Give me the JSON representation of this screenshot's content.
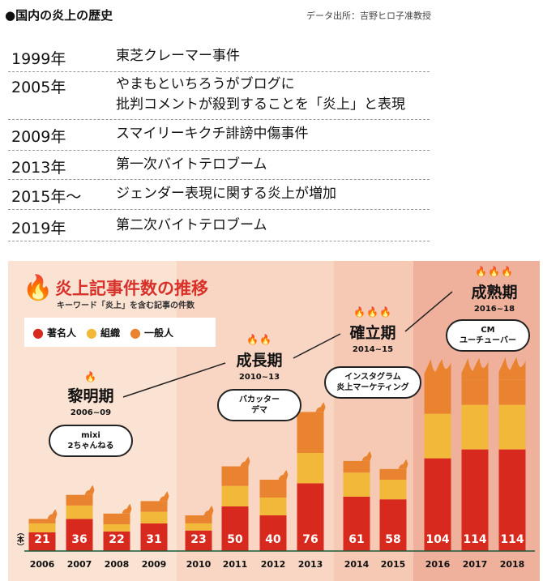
{
  "header": {
    "title": "●国内の炎上の歴史",
    "source": "データ出所：吉野ヒロ子准教授"
  },
  "history": [
    {
      "year": "1999年",
      "event": "東芝クレーマー事件"
    },
    {
      "year": "2005年",
      "event": "やまもといちろうがブログに",
      "event2": "批判コメントが殺到することを「炎上」と表現"
    },
    {
      "year": "2009年",
      "event": "スマイリーキクチ誹謗中傷事件"
    },
    {
      "year": "2013年",
      "event": "第一次バイトテロブーム"
    },
    {
      "year": "2015年～",
      "event": "ジェンダー表現に関する炎上が増加"
    },
    {
      "year": "2019年",
      "event": "第二次バイトテロブーム"
    }
  ],
  "colors": {
    "famous": "#d8291f",
    "organization": "#f2b83a",
    "general": "#ea8330"
  },
  "chart_data": {
    "type": "bar",
    "stacked": true,
    "title": "炎上記事件数の推移",
    "subtitle": "キーワード「炎上」を含む記事の件数",
    "ylabel": "（本）",
    "legend": [
      "著名人",
      "組織",
      "一般人"
    ],
    "categories": [
      "2006",
      "2007",
      "2008",
      "2009",
      "2010",
      "2011",
      "2012",
      "2013",
      "2014",
      "2015",
      "2016",
      "2017",
      "2018"
    ],
    "series": [
      {
        "name": "著名人",
        "values": [
          21,
          36,
          22,
          31,
          23,
          50,
          40,
          76,
          61,
          58,
          104,
          114,
          114
        ]
      },
      {
        "name": "組織",
        "values": [
          10,
          15,
          8,
          13,
          8,
          23,
          20,
          34,
          27,
          22,
          50,
          50,
          50
        ]
      },
      {
        "name": "一般人",
        "values": [
          5,
          12,
          12,
          12,
          9,
          22,
          20,
          46,
          13,
          12,
          36,
          27,
          28
        ]
      }
    ],
    "periods": [
      {
        "name": "黎明期",
        "years": "2006~09",
        "note1": "mixi",
        "note2": "2ちゃんねる",
        "flames": 1
      },
      {
        "name": "成長期",
        "years": "2010~13",
        "note1": "バカッター",
        "note2": "デマ",
        "flames": 2
      },
      {
        "name": "確立期",
        "years": "2014~15",
        "note1": "インスタグラム",
        "note2": "炎上マーケティング",
        "flames": 3
      },
      {
        "name": "成熟期",
        "years": "2016~18",
        "note1": "CM",
        "note2": "ユーチューバー",
        "flames": 3
      }
    ]
  }
}
